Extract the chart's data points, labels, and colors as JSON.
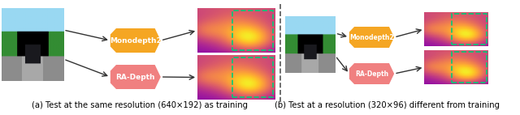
{
  "fig_width": 6.4,
  "fig_height": 1.42,
  "dpi": 100,
  "bg_color": "#ffffff",
  "caption_left": "(a) Test at the same resolution (640×192) as training",
  "caption_right": "(b) Test at a resolution (320×96) different from training",
  "caption_fontsize": 7.2,
  "label_monodepth2": "Monodepth2",
  "label_radepth": "RA-Depth",
  "orange_color": "#F5A623",
  "pink_color": "#F08080",
  "arrow_color": "#333333",
  "dashed_rect_color": "#00CC77",
  "divider_color": "#555555"
}
